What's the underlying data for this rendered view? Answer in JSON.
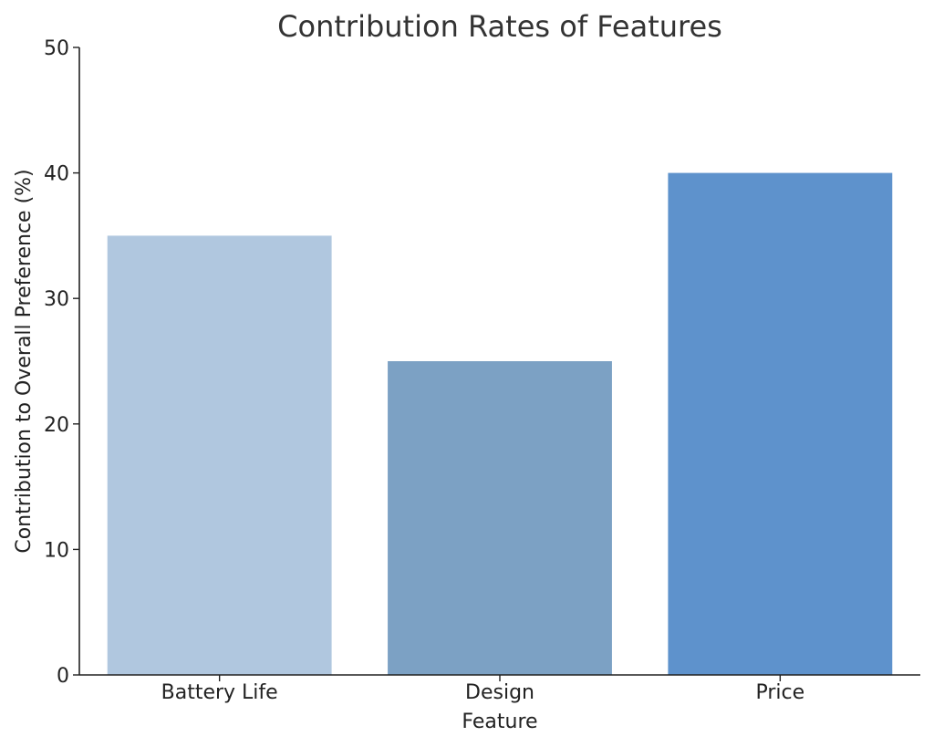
{
  "chart_data": {
    "type": "bar",
    "title": "Contribution Rates of Features",
    "xlabel": "Feature",
    "ylabel": "Contribution to Overall Preference (%)",
    "categories": [
      "Battery Life",
      "Design",
      "Price"
    ],
    "values": [
      35,
      25,
      40
    ],
    "colors": [
      "#b0c7df",
      "#7ca1c4",
      "#5e92cc"
    ],
    "ylim": [
      0,
      50
    ],
    "yticks": [
      0,
      10,
      20,
      30,
      40,
      50
    ],
    "grid": false
  }
}
